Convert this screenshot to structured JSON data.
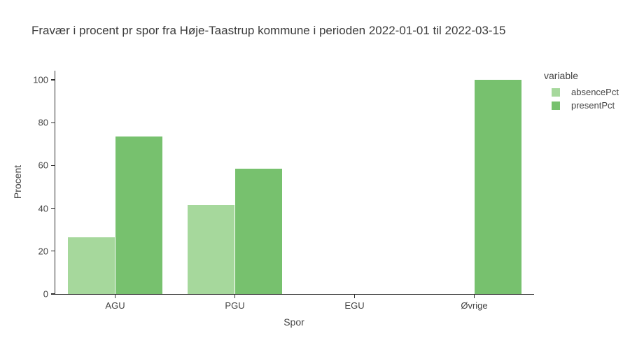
{
  "chart_data": {
    "type": "bar",
    "title": "Fravær i procent pr spor fra Høje-Taastrup kommune i perioden 2022-01-01 til 2022-03-15",
    "xlabel": "Spor",
    "ylabel": "Procent",
    "legend_title": "variable",
    "legend_position": "right",
    "grid": false,
    "categories": [
      "AGU",
      "PGU",
      "EGU",
      "Øvrige"
    ],
    "series": [
      {
        "name": "absencePct",
        "color": "#a6d89c",
        "values": [
          26.5,
          41.5,
          0,
          0
        ]
      },
      {
        "name": "presentPct",
        "color": "#77c16e",
        "values": [
          73.5,
          58.5,
          0,
          100
        ]
      }
    ],
    "ylim": [
      0,
      104.25
    ],
    "yticks": [
      0,
      20,
      40,
      60,
      80,
      100
    ],
    "colors": {
      "axis_line": "#2e2e2e",
      "tick_text": "#444444",
      "title_text": "#3b3b3b",
      "background": "#ffffff"
    }
  }
}
